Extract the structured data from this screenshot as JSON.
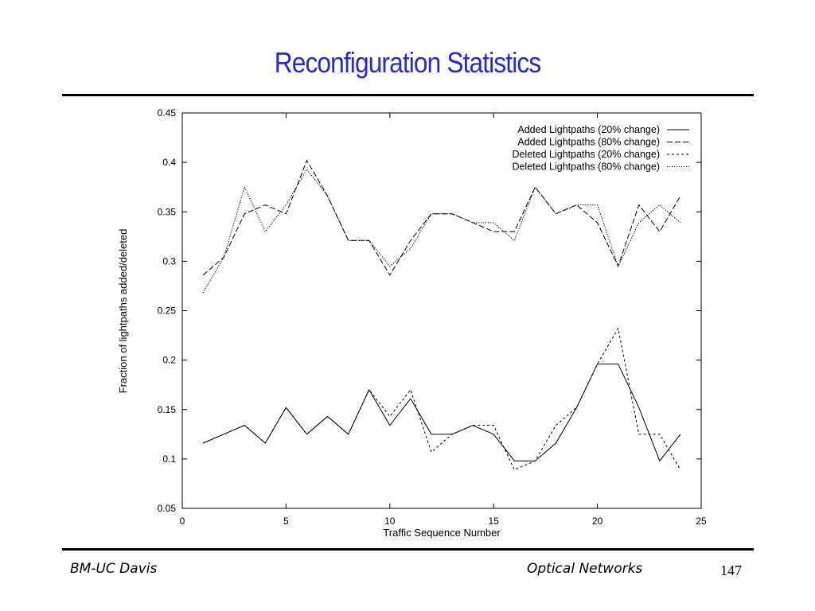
{
  "slide": {
    "title": "Reconfiguration Statistics",
    "footer_left": "BM-UC Davis",
    "footer_center": "Optical Networks",
    "page_number": "147"
  },
  "chart_data": {
    "type": "line",
    "title": "",
    "xlabel": "Traffic Sequence Number",
    "ylabel": "Fraction of lightpaths added/deleted",
    "xlim": [
      0,
      25
    ],
    "ylim": [
      0.05,
      0.45
    ],
    "xticks": [
      0,
      5,
      10,
      15,
      20,
      25
    ],
    "yticks": [
      0.05,
      0.1,
      0.15,
      0.2,
      0.25,
      0.3,
      0.35,
      0.4,
      0.45
    ],
    "grid": false,
    "legend_position": "top-right",
    "x": [
      1,
      2,
      3,
      4,
      5,
      6,
      7,
      8,
      9,
      10,
      11,
      12,
      13,
      14,
      15,
      16,
      17,
      18,
      19,
      20,
      21,
      22,
      23,
      24
    ],
    "series": [
      {
        "name": "Added Lightpaths (20% change)",
        "dash": "solid",
        "values": [
          0.116,
          0.125,
          0.134,
          0.116,
          0.152,
          0.125,
          0.143,
          0.125,
          0.17,
          0.134,
          0.161,
          0.125,
          0.125,
          0.134,
          0.125,
          0.098,
          0.098,
          0.116,
          0.152,
          0.196,
          0.196,
          0.152,
          0.098,
          0.125
        ]
      },
      {
        "name": "Added Lightpaths (80% change)",
        "dash": "dashed",
        "values": [
          0.286,
          0.304,
          0.348,
          0.357,
          0.348,
          0.402,
          0.366,
          0.321,
          0.321,
          0.286,
          0.321,
          0.348,
          0.348,
          0.339,
          0.33,
          0.33,
          0.375,
          0.348,
          0.357,
          0.339,
          0.295,
          0.357,
          0.33,
          0.366
        ]
      },
      {
        "name": "Deleted Lightpaths (20% change)",
        "dash": "short-dashed",
        "values": [
          0.116,
          0.125,
          0.134,
          0.116,
          0.152,
          0.125,
          0.143,
          0.125,
          0.17,
          0.143,
          0.17,
          0.107,
          0.125,
          0.134,
          0.134,
          0.089,
          0.098,
          0.134,
          0.152,
          0.196,
          0.232,
          0.125,
          0.125,
          0.089
        ]
      },
      {
        "name": "Deleted Lightpaths (80% change)",
        "dash": "dotted",
        "values": [
          0.268,
          0.304,
          0.375,
          0.33,
          0.357,
          0.393,
          0.366,
          0.321,
          0.321,
          0.295,
          0.313,
          0.348,
          0.348,
          0.339,
          0.339,
          0.321,
          0.375,
          0.348,
          0.357,
          0.357,
          0.295,
          0.339,
          0.357,
          0.339
        ]
      }
    ]
  }
}
